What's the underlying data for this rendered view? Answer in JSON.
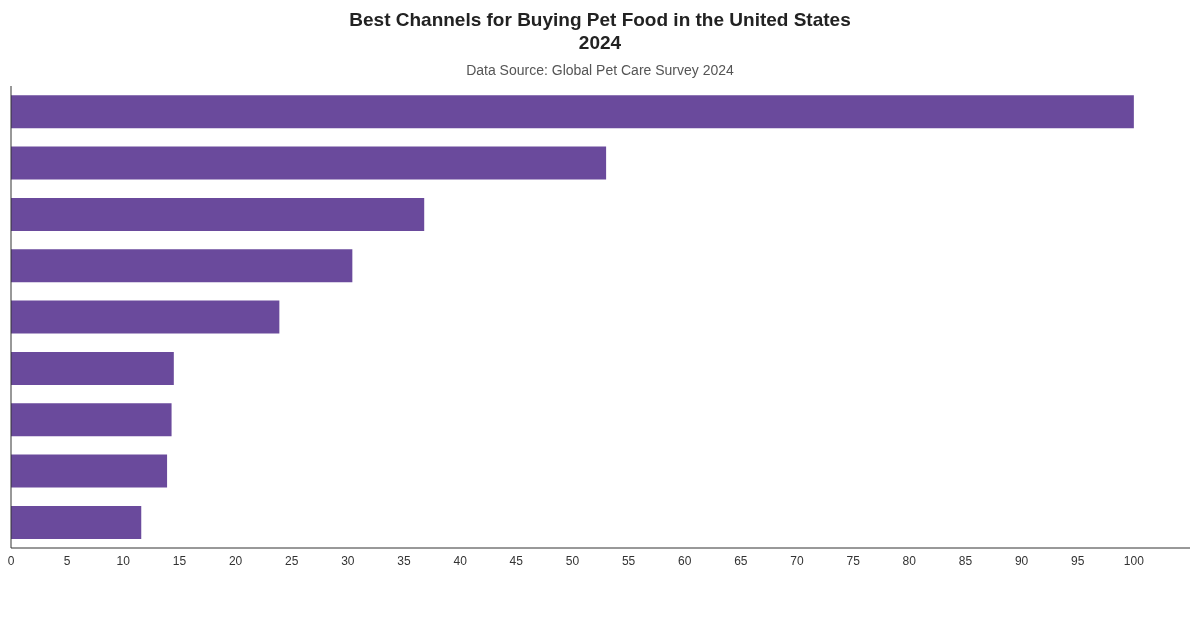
{
  "chart_data": {
    "type": "bar",
    "orientation": "horizontal",
    "title": "Best Channels for Buying Pet Food in the United States\n2024",
    "subtitle": "Data Source: Global Pet Care Survey 2024",
    "categories": [
      null,
      null,
      null,
      null,
      null,
      null,
      null,
      null,
      null
    ],
    "values": [
      100,
      53,
      36.8,
      30.4,
      23.9,
      14.5,
      14.3,
      13.9,
      11.6
    ],
    "color": "#6a4a9c",
    "xlim": [
      0,
      105
    ],
    "xticks": [
      0,
      5,
      10,
      15,
      20,
      25,
      30,
      35,
      40,
      45,
      50,
      55,
      60,
      65,
      70,
      75,
      80,
      85,
      90,
      95,
      100
    ],
    "grid": false
  }
}
